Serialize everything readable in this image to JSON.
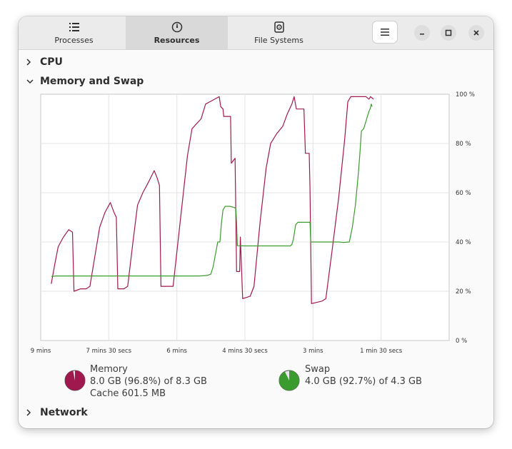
{
  "header": {
    "tabs": [
      {
        "label": "Processes",
        "icon": "list-icon"
      },
      {
        "label": "Resources",
        "icon": "gauge-icon",
        "active": true
      },
      {
        "label": "File Systems",
        "icon": "disk-icon"
      }
    ],
    "menu_icon": "hamburger-menu-icon"
  },
  "sections": {
    "cpu": "CPU",
    "memory": "Memory and Swap",
    "network": "Network"
  },
  "colors": {
    "memory": "#a0194e",
    "swap": "#3a9c2e"
  },
  "memory_legend": {
    "name": "Memory",
    "usage": "8.0 GB (96.8%) of 8.3 GB",
    "cache": "Cache 601.5 MB",
    "fraction": 0.968
  },
  "swap_legend": {
    "name": "Swap",
    "usage": "4.0 GB (92.7%) of 4.3 GB",
    "fraction": 0.927
  },
  "chart_data": {
    "type": "line",
    "x_ticks": [
      "9 mins",
      "7 mins 30 secs",
      "6 mins",
      "4 mins 30 secs",
      "3 mins",
      "1 min 30 secs"
    ],
    "y_ticks": [
      "100 %",
      "80 %",
      "60 %",
      "40 %",
      "20 %",
      "0 %"
    ],
    "x_range_seconds_ago": [
      540,
      0
    ],
    "ylim": [
      0,
      100
    ],
    "grid": true,
    "series": [
      {
        "color_key": "memory",
        "points": [
          [
            526,
            23
          ],
          [
            522,
            30
          ],
          [
            517,
            38
          ],
          [
            510,
            42
          ],
          [
            503,
            45
          ],
          [
            498,
            44
          ],
          [
            496,
            20
          ],
          [
            487,
            21
          ],
          [
            480,
            21
          ],
          [
            475,
            22
          ],
          [
            468,
            35
          ],
          [
            462,
            46
          ],
          [
            455,
            52
          ],
          [
            448,
            56
          ],
          [
            443,
            52
          ],
          [
            440,
            50
          ],
          [
            438,
            21
          ],
          [
            430,
            21
          ],
          [
            425,
            22
          ],
          [
            418,
            40
          ],
          [
            412,
            55
          ],
          [
            405,
            60
          ],
          [
            398,
            64
          ],
          [
            390,
            69
          ],
          [
            386,
            66
          ],
          [
            383,
            63
          ],
          [
            381,
            22
          ],
          [
            370,
            22
          ],
          [
            365,
            22
          ],
          [
            355,
            50
          ],
          [
            346,
            75
          ],
          [
            340,
            86
          ],
          [
            334,
            88
          ],
          [
            328,
            90
          ],
          [
            322,
            96
          ],
          [
            316,
            97
          ],
          [
            310,
            98
          ],
          [
            304,
            99
          ],
          [
            302,
            95
          ],
          [
            299,
            94
          ],
          [
            298,
            91
          ],
          [
            289,
            91
          ],
          [
            288,
            72
          ],
          [
            283,
            74
          ],
          [
            281,
            28
          ],
          [
            277,
            28
          ],
          [
            276,
            42
          ],
          [
            273,
            17
          ],
          [
            263,
            18
          ],
          [
            258,
            22
          ],
          [
            250,
            48
          ],
          [
            242,
            70
          ],
          [
            236,
            80
          ],
          [
            228,
            84
          ],
          [
            220,
            87
          ],
          [
            214,
            92
          ],
          [
            208,
            96
          ],
          [
            205,
            99
          ],
          [
            202,
            94
          ],
          [
            192,
            94
          ],
          [
            190,
            76
          ],
          [
            185,
            76
          ],
          [
            184,
            62
          ],
          [
            182,
            15
          ],
          [
            168,
            16
          ],
          [
            163,
            17
          ],
          [
            155,
            36
          ],
          [
            146,
            58
          ],
          [
            138,
            82
          ],
          [
            134,
            97
          ],
          [
            130,
            99
          ],
          [
            116,
            99
          ],
          [
            110,
            99
          ],
          [
            106,
            98
          ],
          [
            104,
            99
          ],
          [
            100,
            98
          ]
        ]
      },
      {
        "color_key": "swap",
        "points": [
          [
            526,
            26
          ],
          [
            520,
            26.2
          ],
          [
            480,
            26.2
          ],
          [
            440,
            26.2
          ],
          [
            400,
            26.2
          ],
          [
            360,
            26.2
          ],
          [
            330,
            26.2
          ],
          [
            320,
            26.4
          ],
          [
            315,
            27
          ],
          [
            312,
            30
          ],
          [
            309,
            35
          ],
          [
            306,
            40
          ],
          [
            303,
            40
          ],
          [
            301,
            48
          ],
          [
            299,
            53
          ],
          [
            296,
            54.5
          ],
          [
            290,
            54.5
          ],
          [
            284,
            54
          ],
          [
            282,
            53.5
          ],
          [
            281,
            48
          ],
          [
            280,
            38.5
          ],
          [
            270,
            38.4
          ],
          [
            240,
            38.4
          ],
          [
            230,
            38.4
          ],
          [
            210,
            38.4
          ],
          [
            208,
            39
          ],
          [
            206,
            41
          ],
          [
            203,
            47
          ],
          [
            200,
            48
          ],
          [
            192,
            48
          ],
          [
            184,
            48
          ],
          [
            183,
            40
          ],
          [
            172,
            40
          ],
          [
            160,
            40
          ],
          [
            145,
            40
          ],
          [
            140,
            39.8
          ],
          [
            132,
            40
          ],
          [
            128,
            46
          ],
          [
            124,
            55
          ],
          [
            120,
            68
          ],
          [
            118,
            76
          ],
          [
            116,
            85
          ],
          [
            113,
            86
          ],
          [
            109,
            90
          ],
          [
            106,
            93
          ],
          [
            104,
            94.5
          ],
          [
            103,
            96
          ],
          [
            102,
            95
          ]
        ]
      }
    ]
  }
}
